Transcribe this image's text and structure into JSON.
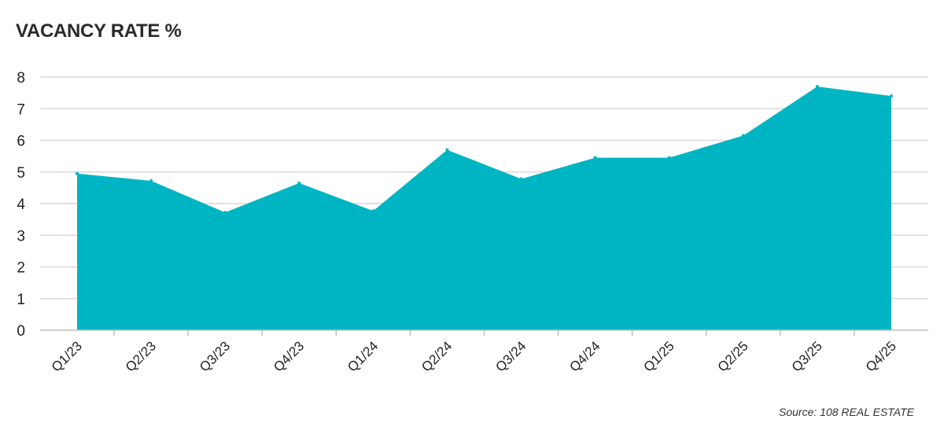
{
  "chart_data": {
    "type": "area",
    "title": "VACANCY RATE %",
    "xlabel": "",
    "ylabel": "",
    "categories": [
      "Q1/23",
      "Q2/23",
      "Q3/23",
      "Q4/23",
      "Q1/24",
      "Q2/24",
      "Q3/24",
      "Q4/24",
      "Q1/25",
      "Q2/25",
      "Q3/25",
      "Q4/25"
    ],
    "series": [
      {
        "values": [
          4.95,
          4.72,
          3.72,
          4.65,
          3.77,
          5.7,
          4.78,
          5.45,
          5.45,
          6.15,
          7.7,
          7.4
        ]
      }
    ],
    "ylim": [
      0,
      8
    ],
    "yticks": [
      "0",
      "1",
      "2",
      "3",
      "4",
      "5",
      "6",
      "7",
      "8"
    ],
    "grid": true,
    "legend": "none",
    "colors": {
      "area": "#00b5c3",
      "grid": "#d9d9d9",
      "axis": "#bfbfbf"
    }
  },
  "source": "Source: 108 REAL ESTATE"
}
